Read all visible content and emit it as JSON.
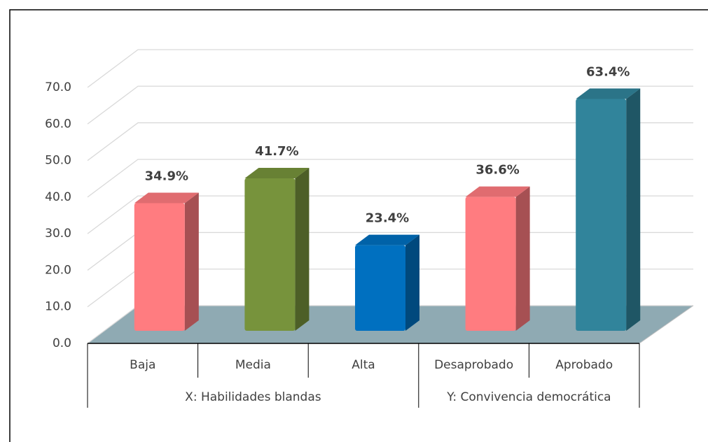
{
  "chart_data": {
    "type": "bar3d",
    "categories": [
      "Baja",
      "Media",
      "Alta",
      "Desaprobado",
      "Aprobado"
    ],
    "values": [
      34.9,
      41.7,
      23.4,
      36.6,
      63.4
    ],
    "value_labels": [
      "34.9%",
      "41.7%",
      "23.4%",
      "36.6%",
      "63.4%"
    ],
    "colors": [
      "#ff7c80",
      "#77933c",
      "#0070c0",
      "#ff7c80",
      "#31849b"
    ],
    "groups": [
      {
        "name": "X: Habilidades blandas",
        "count": 3
      },
      {
        "name": "Y: Convivencia democrática",
        "count": 2
      }
    ],
    "ylim": [
      0,
      70
    ],
    "yticks": [
      {
        "value": 0,
        "label": "0.0"
      },
      {
        "value": 10,
        "label": "10.0"
      },
      {
        "value": 20,
        "label": "20.0"
      },
      {
        "value": 30,
        "label": "30.0"
      },
      {
        "value": 40,
        "label": "40.0"
      },
      {
        "value": 50,
        "label": "50.0"
      },
      {
        "value": 60,
        "label": "60.0"
      },
      {
        "value": 70,
        "label": "70.0"
      }
    ],
    "grid": true
  }
}
